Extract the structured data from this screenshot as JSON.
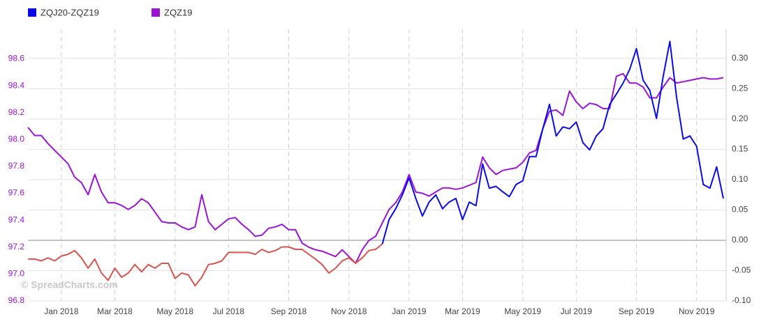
{
  "chart_data": {
    "type": "line",
    "watermark": "© SpreadCharts.com",
    "categories": [
      null,
      null,
      null,
      null,
      null,
      "Jan 2018",
      null,
      null,
      null,
      null,
      null,
      null,
      null,
      "Mar 2018",
      null,
      null,
      null,
      null,
      null,
      null,
      null,
      null,
      "May 2018",
      null,
      null,
      null,
      null,
      null,
      null,
      null,
      "Jul 2018",
      null,
      null,
      null,
      null,
      null,
      null,
      null,
      null,
      "Sep 2018",
      null,
      null,
      null,
      null,
      null,
      null,
      null,
      null,
      "Nov 2018",
      null,
      null,
      null,
      null,
      null,
      null,
      null,
      null,
      "Jan 2019",
      null,
      null,
      null,
      null,
      null,
      null,
      null,
      "Mar 2019",
      null,
      null,
      null,
      null,
      null,
      null,
      null,
      null,
      "May 2019",
      null,
      null,
      null,
      null,
      null,
      null,
      null,
      "Jul 2019",
      null,
      null,
      null,
      null,
      null,
      null,
      null,
      null,
      "Sep 2019",
      null,
      null,
      null,
      null,
      null,
      null,
      null,
      null,
      "Nov 2019",
      null,
      null,
      null,
      null
    ],
    "series": [
      {
        "name": "ZQJ20-ZQZ19",
        "color": "#0a0ae6",
        "negative_color": "#d9534f",
        "axis": "y2",
        "values": [
          -0.031,
          -0.031,
          -0.034,
          -0.029,
          -0.034,
          -0.026,
          -0.023,
          -0.017,
          -0.029,
          -0.046,
          -0.031,
          -0.054,
          -0.066,
          -0.046,
          -0.061,
          -0.054,
          -0.04,
          -0.052,
          -0.04,
          -0.046,
          -0.038,
          -0.038,
          -0.063,
          -0.054,
          -0.057,
          -0.075,
          -0.061,
          -0.04,
          -0.038,
          -0.034,
          -0.02,
          -0.02,
          -0.02,
          -0.02,
          -0.023,
          -0.015,
          -0.02,
          -0.017,
          -0.011,
          -0.011,
          -0.015,
          -0.015,
          -0.023,
          -0.031,
          -0.04,
          -0.054,
          -0.046,
          -0.034,
          -0.029,
          -0.038,
          -0.029,
          -0.017,
          -0.015,
          -0.006,
          0.034,
          0.052,
          0.075,
          0.103,
          0.069,
          0.04,
          0.063,
          0.075,
          0.052,
          0.063,
          0.069,
          0.034,
          0.063,
          0.057,
          0.126,
          0.086,
          0.089,
          0.08,
          0.072,
          0.092,
          0.098,
          0.138,
          0.138,
          0.184,
          0.224,
          0.172,
          0.187,
          0.184,
          0.195,
          0.161,
          0.149,
          0.172,
          0.184,
          0.224,
          0.241,
          0.259,
          0.282,
          0.316,
          0.264,
          0.247,
          0.201,
          0.27,
          0.328,
          0.236,
          0.167,
          0.172,
          0.155,
          0.092,
          0.086,
          0.121,
          0.069
        ]
      },
      {
        "name": "ZQZ19",
        "color": "#9b14d4",
        "axis": "y",
        "values": [
          98.09,
          98.03,
          98.03,
          97.97,
          97.92,
          97.87,
          97.82,
          97.72,
          97.68,
          97.59,
          97.74,
          97.61,
          97.53,
          97.53,
          97.51,
          97.48,
          97.51,
          97.56,
          97.53,
          97.46,
          97.39,
          97.38,
          97.38,
          97.35,
          97.33,
          97.35,
          97.59,
          97.39,
          97.33,
          97.37,
          97.41,
          97.42,
          97.37,
          97.33,
          97.28,
          97.29,
          97.34,
          97.35,
          97.37,
          97.33,
          97.33,
          97.23,
          97.2,
          97.18,
          97.17,
          97.15,
          97.13,
          97.18,
          97.13,
          97.08,
          97.18,
          97.25,
          97.28,
          97.38,
          97.48,
          97.53,
          97.61,
          97.74,
          97.61,
          97.6,
          97.58,
          97.61,
          97.64,
          97.64,
          97.63,
          97.64,
          97.66,
          97.68,
          97.87,
          97.79,
          97.74,
          97.77,
          97.78,
          97.79,
          97.83,
          97.9,
          97.92,
          98.08,
          98.21,
          98.22,
          98.18,
          98.36,
          98.28,
          98.23,
          98.27,
          98.26,
          98.23,
          98.23,
          98.47,
          98.49,
          98.42,
          98.42,
          98.39,
          98.31,
          98.31,
          98.39,
          98.46,
          98.42,
          98.43,
          98.44,
          98.45,
          98.46,
          98.45,
          98.45,
          98.46
        ]
      }
    ],
    "ylim": [
      96.8,
      98.82
    ],
    "yticks": [
      96.8,
      {
        "value": 97.0,
        "label": "97.0"
      },
      97.2,
      97.4,
      97.6,
      97.8,
      {
        "value": 98.0,
        "label": "98.0"
      },
      98.2,
      98.4,
      98.6
    ],
    "y2lim": [
      -0.1,
      0.348
    ],
    "y2ticks": [
      {
        "value": -0.1,
        "label": "-0.10"
      },
      {
        "value": -0.05,
        "label": "-0.05"
      },
      {
        "value": 0,
        "label": "0.00"
      },
      {
        "value": 0.05,
        "label": "0.05"
      },
      {
        "value": 0.1,
        "label": "0.10"
      },
      {
        "value": 0.15,
        "label": "0.15"
      },
      {
        "value": 0.2,
        "label": "0.20"
      },
      {
        "value": 0.25,
        "label": "0.25"
      },
      {
        "value": 0.3,
        "label": "0.30"
      }
    ],
    "grid": "y2"
  }
}
